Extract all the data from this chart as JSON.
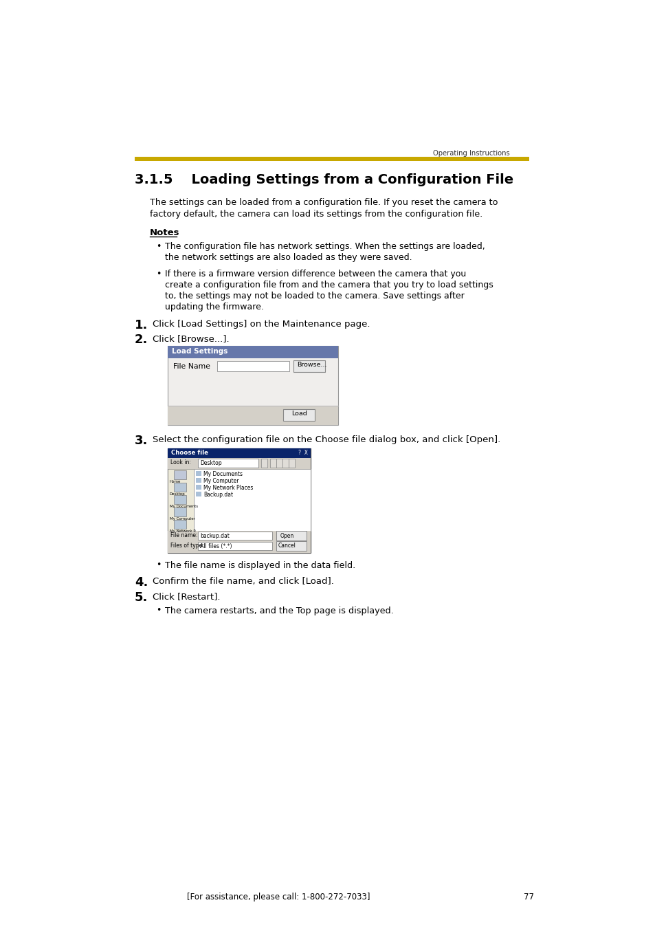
{
  "page_bg": "#ffffff",
  "header_text": "Operating Instructions",
  "gold_bar_color": "#C8A800",
  "section_title": "3.1.5    Loading Settings from a Configuration File",
  "intro_line1": "The settings can be loaded from a configuration file. If you reset the camera to",
  "intro_line2": "factory default, the camera can load its settings from the configuration file.",
  "notes_label": "Notes",
  "note1_line1": "The configuration file has network settings. When the settings are loaded,",
  "note1_line2": "the network settings are also loaded as they were saved.",
  "note2_line1": "If there is a firmware version difference between the camera that you",
  "note2_line2": "create a configuration file from and the camera that you try to load settings",
  "note2_line3": "to, the settings may not be loaded to the camera. Save settings after",
  "note2_line4": "updating the firmware.",
  "step1": "Click [Load Settings] on the Maintenance page.",
  "step2": "Click [Browse...].",
  "step3": "Select the configuration file on the Choose file dialog box, and click [Open].",
  "step3_note": "The file name is displayed in the data field.",
  "step4": "Confirm the file name, and click [Load].",
  "step5": "Click [Restart].",
  "step5_note": "The camera restarts, and the Top page is displayed.",
  "footer_text": "[For assistance, please call: 1-800-272-7033]",
  "footer_page": "77"
}
